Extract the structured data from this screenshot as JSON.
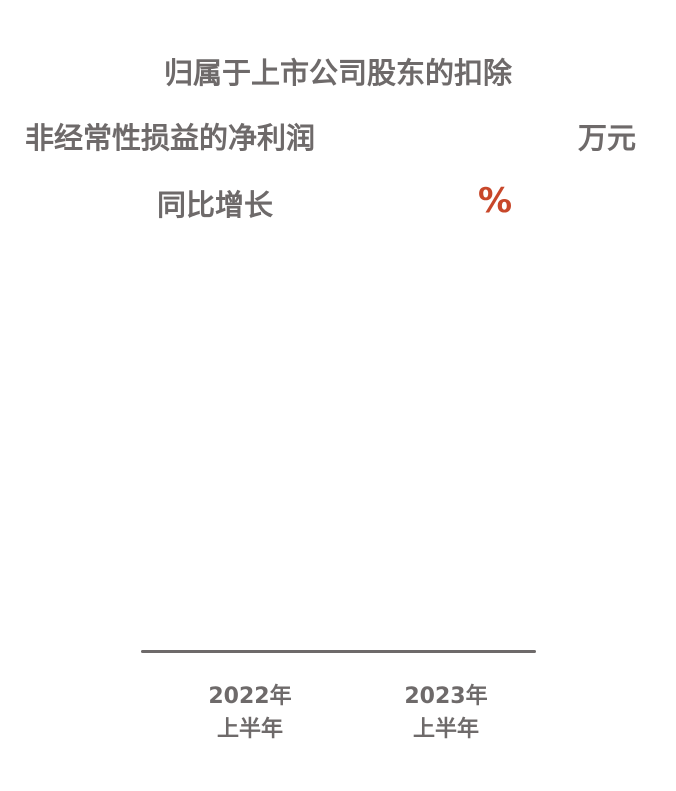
{
  "title": {
    "line1": "归属于上市公司股东的扣除",
    "line2": "非经常性损益的净利润",
    "unit": "万元",
    "line3": "同比增长",
    "percent_sign": "%"
  },
  "colors": {
    "text": "#6e6a6a",
    "accent": "#c8472a"
  },
  "chart_data": {
    "type": "bar",
    "categories": [
      {
        "year": "2022年",
        "period": "上半年"
      },
      {
        "year": "2023年",
        "period": "上半年"
      }
    ],
    "title": "归属于上市公司股东的扣除非经常性损益的净利润",
    "unit": "万元"
  }
}
